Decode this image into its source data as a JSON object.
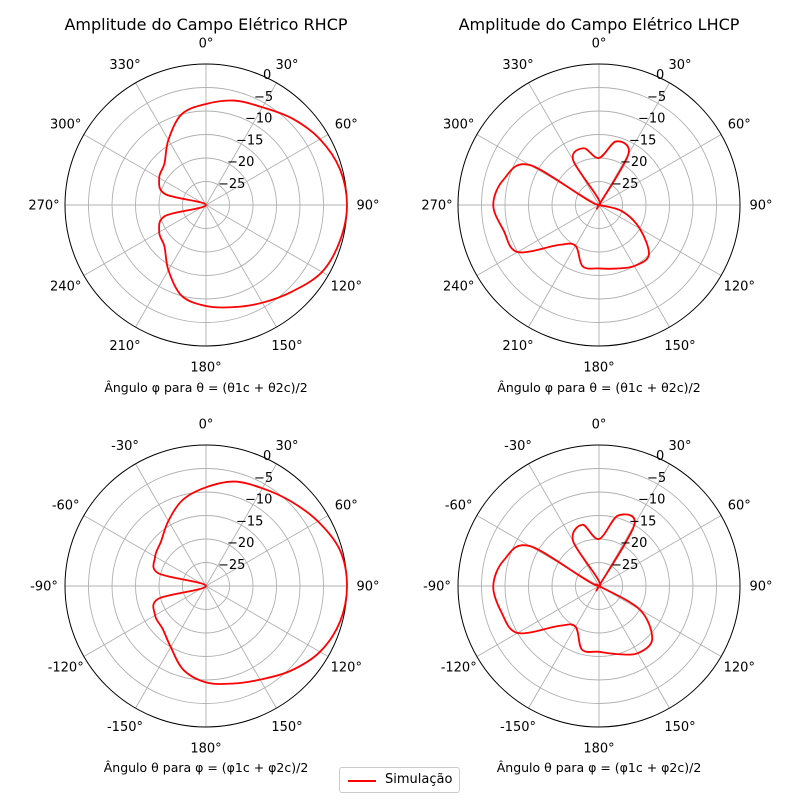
{
  "colors": {
    "series": "#ff0000",
    "grid": "#b0b0b0",
    "spine": "#000000"
  },
  "legend": {
    "label": "Simulação",
    "placement": "bottom-center"
  },
  "chart_data": [
    {
      "type": "line",
      "subtype": "polar",
      "title": "Amplitude do Campo Elétrico RHCP",
      "xlabel": "Ângulo φ para θ = (θ1c + θ2c)/2",
      "angle_tick_labels": [
        "0°",
        "30°",
        "60°",
        "90°",
        "120°",
        "150°",
        "180°",
        "210°",
        "240°",
        "270°",
        "300°",
        "330°"
      ],
      "radial_ticks": [
        -25,
        -20,
        -15,
        -10,
        -5,
        0
      ],
      "radial_tick_labels": [
        "−25",
        "−20",
        "−15",
        "−10",
        "−5",
        "0"
      ],
      "rlim": [
        -30,
        0
      ],
      "theta_direction": "clockwise",
      "theta_zero": "top",
      "grid": true,
      "series": [
        {
          "name": "Simulação",
          "angles_deg": [
            0,
            15,
            30,
            45,
            60,
            75,
            90,
            105,
            120,
            135,
            150,
            165,
            180,
            195,
            210,
            225,
            240,
            255,
            270,
            285,
            300,
            315,
            330,
            345
          ],
          "values_db": [
            -8.5,
            -7,
            -6,
            -4,
            -2,
            -0.5,
            0,
            -0.5,
            -1.5,
            -4,
            -6,
            -7.5,
            -8.5,
            -10,
            -14,
            -17.5,
            -18.5,
            -21,
            -30,
            -21,
            -18.5,
            -17.5,
            -14,
            -10
          ]
        }
      ]
    },
    {
      "type": "line",
      "subtype": "polar",
      "title": "Amplitude do Campo Elétrico LHCP",
      "xlabel": "Ângulo φ para θ = (θ1c + θ2c)/2",
      "angle_tick_labels": [
        "0°",
        "30°",
        "60°",
        "90°",
        "120°",
        "150°",
        "180°",
        "210°",
        "240°",
        "270°",
        "300°",
        "330°"
      ],
      "radial_ticks": [
        -25,
        -20,
        -15,
        -10,
        -5,
        0
      ],
      "radial_tick_labels": [
        "−25",
        "−20",
        "−15",
        "−10",
        "−5",
        "0"
      ],
      "rlim": [
        -30,
        0
      ],
      "theta_direction": "clockwise",
      "theta_zero": "top",
      "grid": true,
      "series": [
        {
          "name": "Simulação",
          "angles_deg": [
            0,
            15,
            30,
            45,
            60,
            75,
            90,
            105,
            120,
            135,
            150,
            165,
            180,
            195,
            210,
            225,
            240,
            255,
            270,
            285,
            300,
            315,
            330,
            345
          ],
          "values_db": [
            -20,
            -16,
            -17.5,
            -30,
            -30,
            -30,
            -30,
            -25,
            -20,
            -15,
            -15,
            -16,
            -16.5,
            -16.5,
            -20,
            -18,
            -10,
            -9,
            -7.5,
            -9,
            -13,
            -30,
            -19,
            -17.5
          ]
        }
      ]
    },
    {
      "type": "line",
      "subtype": "polar",
      "title": "",
      "xlabel": "Ângulo θ para φ = (φ1c + φ2c)/2",
      "angle_tick_labels": [
        "0°",
        "30°",
        "60°",
        "90°",
        "120°",
        "150°",
        "180°",
        "-150°",
        "-120°",
        "-90°",
        "-60°",
        "-30°"
      ],
      "radial_ticks": [
        -25,
        -20,
        -15,
        -10,
        -5,
        0
      ],
      "radial_tick_labels": [
        "−25",
        "−20",
        "−15",
        "−10",
        "−5",
        "0"
      ],
      "rlim": [
        -30,
        0
      ],
      "theta_direction": "clockwise",
      "theta_zero": "top",
      "grid": true,
      "series": [
        {
          "name": "Simulação",
          "angles_deg": [
            0,
            15,
            30,
            45,
            60,
            75,
            90,
            105,
            120,
            135,
            150,
            165,
            180,
            195,
            210,
            225,
            240,
            255,
            270,
            285,
            300,
            315,
            330,
            345
          ],
          "values_db": [
            -9,
            -7,
            -6,
            -4.5,
            -2.5,
            -0.5,
            0,
            -0.5,
            -2,
            -4.5,
            -7,
            -8.5,
            -9.5,
            -11.5,
            -15,
            -17,
            -17.5,
            -19.5,
            -30,
            -19.5,
            -17.5,
            -16.5,
            -14,
            -11
          ]
        }
      ]
    },
    {
      "type": "line",
      "subtype": "polar",
      "title": "",
      "xlabel": "Ângulo θ para φ = (φ1c + φ2c)/2",
      "angle_tick_labels": [
        "0°",
        "30°",
        "60°",
        "90°",
        "120°",
        "150°",
        "180°",
        "-150°",
        "-120°",
        "-90°",
        "-60°",
        "-30°"
      ],
      "radial_ticks": [
        -25,
        -20,
        -15,
        -10,
        -5,
        0
      ],
      "radial_tick_labels": [
        "−25",
        "−20",
        "−15",
        "−10",
        "−5",
        "0"
      ],
      "rlim": [
        -30,
        0
      ],
      "theta_direction": "clockwise",
      "theta_zero": "top",
      "grid": true,
      "series": [
        {
          "name": "Simulação",
          "angles_deg": [
            0,
            15,
            30,
            45,
            60,
            75,
            90,
            105,
            120,
            135,
            150,
            165,
            180,
            195,
            210,
            225,
            240,
            255,
            270,
            285,
            300,
            315,
            330,
            345
          ],
          "values_db": [
            -20,
            -14.5,
            -15,
            -30,
            -30,
            -30,
            -30,
            -30,
            -20,
            -14,
            -13.5,
            -15,
            -16,
            -16,
            -20,
            -18,
            -10,
            -8.5,
            -7.5,
            -9,
            -13,
            -30,
            -19,
            -16.5
          ]
        }
      ]
    }
  ]
}
